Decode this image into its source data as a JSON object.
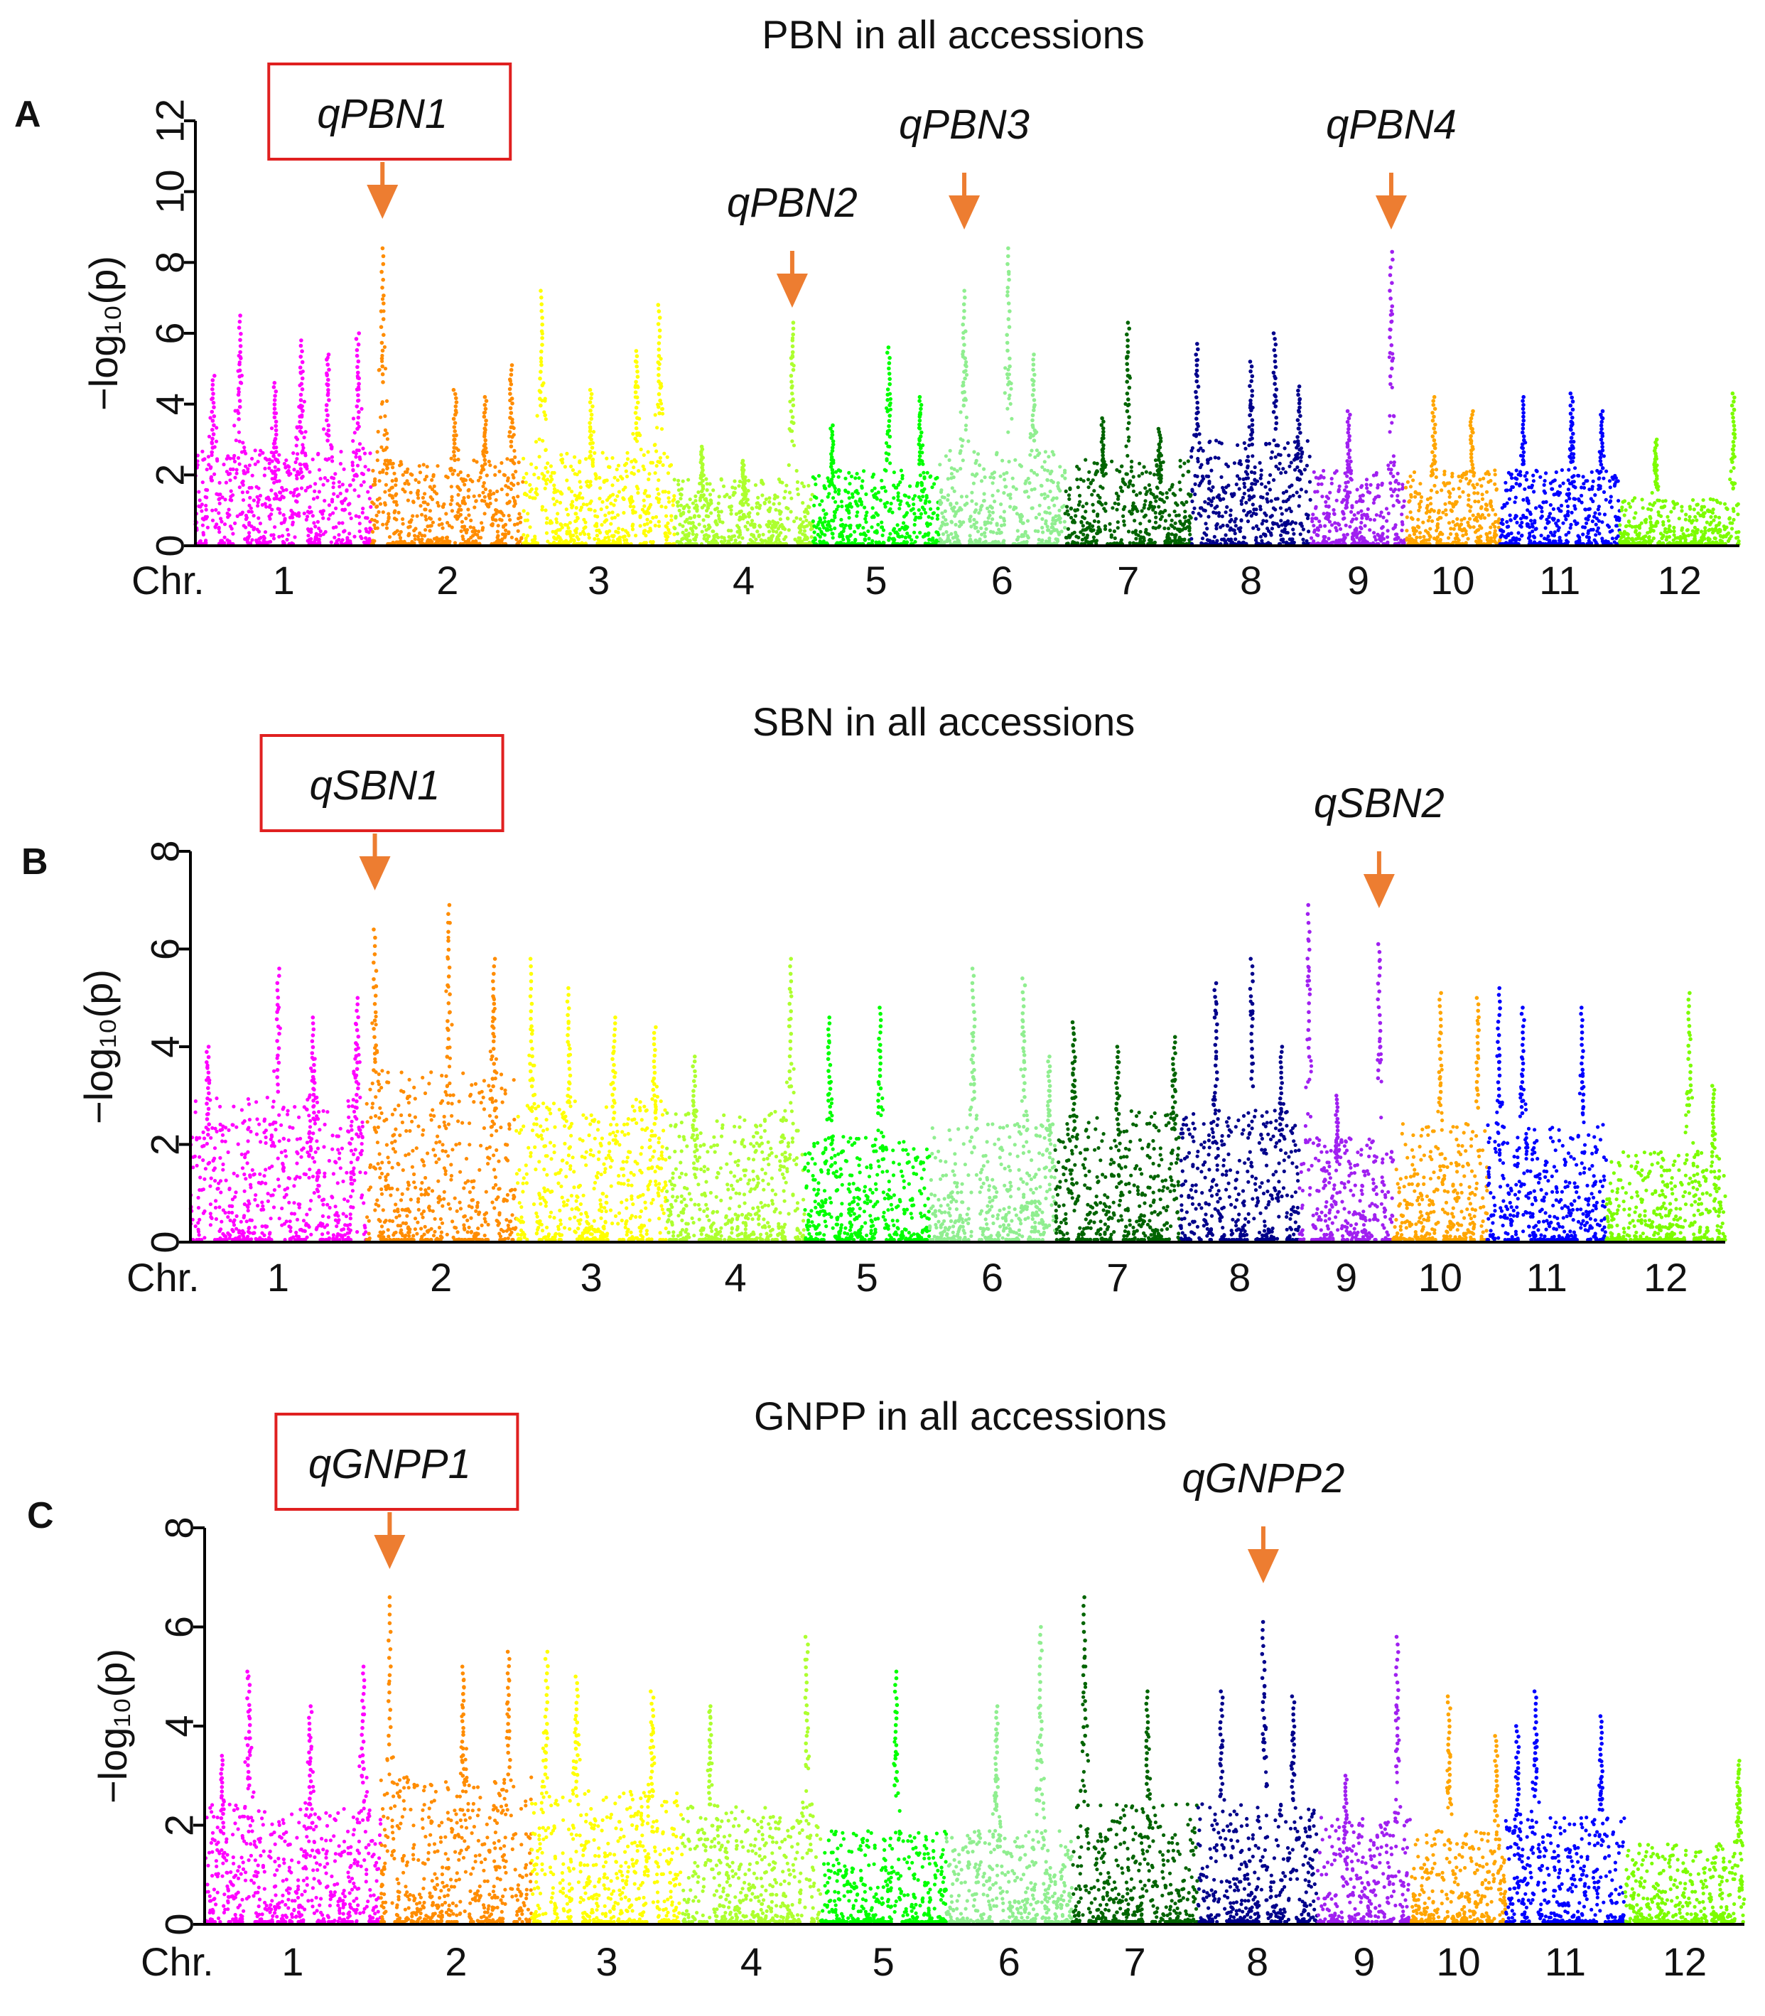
{
  "figure": {
    "ylabel": "−log₁₀(p)",
    "xlabel_prefix": "Chr.",
    "arrow_color": "#ED7D31",
    "box_color": "#E02020"
  },
  "chart_data": [
    {
      "type": "scatter",
      "panel": "A",
      "title": "PBN in all accessions",
      "xlabel": "Chr.",
      "ylabel": "−log₁₀(p)",
      "ylim": [
        0,
        12
      ],
      "yticks": [
        0,
        2,
        4,
        6,
        8,
        10,
        12
      ],
      "categories": [
        "1",
        "2",
        "3",
        "4",
        "5",
        "6",
        "7",
        "8",
        "9",
        "10",
        "11",
        "12"
      ],
      "chromosome_colors": [
        "#FF00FF",
        "#FF8C00",
        "#FFFF00",
        "#ADFF2F",
        "#00FF00",
        "#90EE90",
        "#006400",
        "#00008B",
        "#A020F0",
        "#FFA500",
        "#0000FF",
        "#7CFC00"
      ],
      "chromosome_widths": [
        1.4,
        1.2,
        1.2,
        1.1,
        1.0,
        1.0,
        1.0,
        0.95,
        0.75,
        0.75,
        0.95,
        0.95
      ],
      "series": [
        {
          "name": "1",
          "peaks": [
            {
              "x": 0.1,
              "y": 4.8
            },
            {
              "x": 0.25,
              "y": 6.5
            },
            {
              "x": 0.45,
              "y": 4.6
            },
            {
              "x": 0.6,
              "y": 5.8
            },
            {
              "x": 0.75,
              "y": 5.4
            },
            {
              "x": 0.92,
              "y": 6.0
            }
          ],
          "base": 2.0
        },
        {
          "name": "2",
          "peaks": [
            {
              "x": 0.07,
              "y": 8.4
            },
            {
              "x": 0.55,
              "y": 4.4
            },
            {
              "x": 0.75,
              "y": 4.2
            },
            {
              "x": 0.92,
              "y": 5.1
            }
          ],
          "base": 1.8
        },
        {
          "name": "3",
          "peaks": [
            {
              "x": 0.12,
              "y": 7.2
            },
            {
              "x": 0.45,
              "y": 4.4
            },
            {
              "x": 0.75,
              "y": 5.5
            },
            {
              "x": 0.9,
              "y": 6.8
            }
          ],
          "base": 2.0
        },
        {
          "name": "4",
          "peaks": [
            {
              "x": 0.2,
              "y": 2.8
            },
            {
              "x": 0.5,
              "y": 2.4
            },
            {
              "x": 0.85,
              "y": 6.3
            }
          ],
          "base": 1.4
        },
        {
          "name": "5",
          "peaks": [
            {
              "x": 0.15,
              "y": 3.4
            },
            {
              "x": 0.6,
              "y": 5.6
            },
            {
              "x": 0.85,
              "y": 4.2
            }
          ],
          "base": 1.6
        },
        {
          "name": "6",
          "peaks": [
            {
              "x": 0.2,
              "y": 7.2
            },
            {
              "x": 0.55,
              "y": 8.4
            },
            {
              "x": 0.75,
              "y": 5.4
            }
          ],
          "base": 2.0
        },
        {
          "name": "7",
          "peaks": [
            {
              "x": 0.3,
              "y": 3.6
            },
            {
              "x": 0.5,
              "y": 6.3
            },
            {
              "x": 0.75,
              "y": 3.3
            }
          ],
          "base": 1.8
        },
        {
          "name": "8",
          "peaks": [
            {
              "x": 0.05,
              "y": 5.7
            },
            {
              "x": 0.5,
              "y": 5.2
            },
            {
              "x": 0.7,
              "y": 6.0
            },
            {
              "x": 0.9,
              "y": 4.5
            }
          ],
          "base": 2.2
        },
        {
          "name": "9",
          "peaks": [
            {
              "x": 0.4,
              "y": 3.8
            },
            {
              "x": 0.85,
              "y": 8.3
            }
          ],
          "base": 1.6
        },
        {
          "name": "10",
          "peaks": [
            {
              "x": 0.3,
              "y": 4.2
            },
            {
              "x": 0.7,
              "y": 3.8
            }
          ],
          "base": 1.6
        },
        {
          "name": "11",
          "peaks": [
            {
              "x": 0.2,
              "y": 4.2
            },
            {
              "x": 0.6,
              "y": 4.3
            },
            {
              "x": 0.85,
              "y": 3.8
            }
          ],
          "base": 1.6
        },
        {
          "name": "12",
          "peaks": [
            {
              "x": 0.3,
              "y": 3.0
            },
            {
              "x": 0.95,
              "y": 4.3
            }
          ],
          "base": 1.0
        }
      ],
      "annotations": [
        {
          "label": "qPBN1",
          "boxed": true,
          "chr": 2,
          "pos": 0.07
        },
        {
          "label": "qPBN2",
          "boxed": false,
          "chr": 4,
          "pos": 0.85
        },
        {
          "label": "qPBN3",
          "boxed": false,
          "chr": 6,
          "pos": 0.2
        },
        {
          "label": "qPBN4",
          "boxed": false,
          "chr": 9,
          "pos": 0.85
        }
      ]
    },
    {
      "type": "scatter",
      "panel": "B",
      "title": "SBN in all accessions",
      "xlabel": "Chr.",
      "ylabel": "−log₁₀(p)",
      "ylim": [
        0,
        8
      ],
      "yticks": [
        0,
        2,
        4,
        6,
        8
      ],
      "categories": [
        "1",
        "2",
        "3",
        "4",
        "5",
        "6",
        "7",
        "8",
        "9",
        "10",
        "11",
        "12"
      ],
      "chromosome_colors": [
        "#FF00FF",
        "#FF8C00",
        "#FFFF00",
        "#ADFF2F",
        "#00FF00",
        "#90EE90",
        "#006400",
        "#00008B",
        "#A020F0",
        "#FFA500",
        "#0000FF",
        "#7CFC00"
      ],
      "chromosome_widths": [
        1.4,
        1.2,
        1.2,
        1.1,
        1.0,
        1.0,
        1.0,
        0.95,
        0.75,
        0.75,
        0.95,
        0.95
      ],
      "series": [
        {
          "name": "1",
          "peaks": [
            {
              "x": 0.1,
              "y": 4.0
            },
            {
              "x": 0.5,
              "y": 5.6
            },
            {
              "x": 0.7,
              "y": 4.6
            },
            {
              "x": 0.95,
              "y": 5.0
            }
          ],
          "base": 2.2
        },
        {
          "name": "2",
          "peaks": [
            {
              "x": 0.06,
              "y": 6.4
            },
            {
              "x": 0.55,
              "y": 6.9
            },
            {
              "x": 0.85,
              "y": 5.8
            }
          ],
          "base": 2.6
        },
        {
          "name": "3",
          "peaks": [
            {
              "x": 0.1,
              "y": 5.8
            },
            {
              "x": 0.35,
              "y": 5.2
            },
            {
              "x": 0.65,
              "y": 4.6
            },
            {
              "x": 0.92,
              "y": 4.4
            }
          ],
          "base": 2.2
        },
        {
          "name": "4",
          "peaks": [
            {
              "x": 0.2,
              "y": 3.8
            },
            {
              "x": 0.9,
              "y": 5.8
            }
          ],
          "base": 2.0
        },
        {
          "name": "5",
          "peaks": [
            {
              "x": 0.2,
              "y": 4.6
            },
            {
              "x": 0.6,
              "y": 4.8
            }
          ],
          "base": 1.6
        },
        {
          "name": "6",
          "peaks": [
            {
              "x": 0.35,
              "y": 5.6
            },
            {
              "x": 0.75,
              "y": 5.4
            },
            {
              "x": 0.95,
              "y": 3.8
            }
          ],
          "base": 1.8
        },
        {
          "name": "7",
          "peaks": [
            {
              "x": 0.15,
              "y": 4.5
            },
            {
              "x": 0.5,
              "y": 4.0
            },
            {
              "x": 0.95,
              "y": 4.2
            }
          ],
          "base": 2.0
        },
        {
          "name": "8",
          "peaks": [
            {
              "x": 0.3,
              "y": 5.3
            },
            {
              "x": 0.6,
              "y": 5.8
            },
            {
              "x": 0.85,
              "y": 4.0
            }
          ],
          "base": 2.0
        },
        {
          "name": "9",
          "peaks": [
            {
              "x": 0.1,
              "y": 6.9
            },
            {
              "x": 0.4,
              "y": 3.0
            },
            {
              "x": 0.85,
              "y": 6.1
            }
          ],
          "base": 1.6
        },
        {
          "name": "10",
          "peaks": [
            {
              "x": 0.5,
              "y": 5.1
            },
            {
              "x": 0.9,
              "y": 5.0
            }
          ],
          "base": 1.8
        },
        {
          "name": "11",
          "peaks": [
            {
              "x": 0.1,
              "y": 5.2
            },
            {
              "x": 0.3,
              "y": 4.8
            },
            {
              "x": 0.8,
              "y": 4.8
            }
          ],
          "base": 1.8
        },
        {
          "name": "12",
          "peaks": [
            {
              "x": 0.7,
              "y": 5.1
            },
            {
              "x": 0.9,
              "y": 3.2
            }
          ],
          "base": 1.4
        }
      ],
      "annotations": [
        {
          "label": "qSBN1",
          "boxed": true,
          "chr": 2,
          "pos": 0.06
        },
        {
          "label": "qSBN2",
          "boxed": false,
          "chr": 9,
          "pos": 0.85
        }
      ]
    },
    {
      "type": "scatter",
      "panel": "C",
      "title": "GNPP in all accessions",
      "xlabel": "Chr.",
      "ylabel": "−log₁₀(p)",
      "ylim": [
        0,
        8
      ],
      "yticks": [
        0,
        2,
        4,
        6,
        8
      ],
      "categories": [
        "1",
        "2",
        "3",
        "4",
        "5",
        "6",
        "7",
        "8",
        "9",
        "10",
        "11",
        "12"
      ],
      "chromosome_colors": [
        "#FF00FF",
        "#FF8C00",
        "#FFFF00",
        "#ADFF2F",
        "#00FF00",
        "#90EE90",
        "#006400",
        "#00008B",
        "#A020F0",
        "#FFA500",
        "#0000FF",
        "#7CFC00"
      ],
      "chromosome_widths": [
        1.4,
        1.2,
        1.2,
        1.1,
        1.0,
        1.0,
        1.0,
        0.95,
        0.75,
        0.75,
        0.95,
        0.95
      ],
      "series": [
        {
          "name": "1",
          "peaks": [
            {
              "x": 0.1,
              "y": 3.4
            },
            {
              "x": 0.25,
              "y": 5.1
            },
            {
              "x": 0.6,
              "y": 4.4
            },
            {
              "x": 0.9,
              "y": 5.2
            }
          ],
          "base": 1.8
        },
        {
          "name": "2",
          "peaks": [
            {
              "x": 0.06,
              "y": 6.6
            },
            {
              "x": 0.55,
              "y": 5.2
            },
            {
              "x": 0.85,
              "y": 5.5
            }
          ],
          "base": 2.2
        },
        {
          "name": "3",
          "peaks": [
            {
              "x": 0.1,
              "y": 5.5
            },
            {
              "x": 0.3,
              "y": 5.0
            },
            {
              "x": 0.8,
              "y": 4.7
            }
          ],
          "base": 2.0
        },
        {
          "name": "4",
          "peaks": [
            {
              "x": 0.2,
              "y": 4.4
            },
            {
              "x": 0.9,
              "y": 5.8
            }
          ],
          "base": 1.8
        },
        {
          "name": "5",
          "peaks": [
            {
              "x": 0.6,
              "y": 5.1
            }
          ],
          "base": 1.4
        },
        {
          "name": "6",
          "peaks": [
            {
              "x": 0.4,
              "y": 4.4
            },
            {
              "x": 0.75,
              "y": 6.0
            }
          ],
          "base": 1.4
        },
        {
          "name": "7",
          "peaks": [
            {
              "x": 0.1,
              "y": 6.6
            },
            {
              "x": 0.6,
              "y": 4.7
            }
          ],
          "base": 1.8
        },
        {
          "name": "8",
          "peaks": [
            {
              "x": 0.2,
              "y": 4.7
            },
            {
              "x": 0.55,
              "y": 6.1
            },
            {
              "x": 0.8,
              "y": 4.6
            }
          ],
          "base": 1.8
        },
        {
          "name": "9",
          "peaks": [
            {
              "x": 0.3,
              "y": 3.0
            },
            {
              "x": 0.85,
              "y": 5.8
            }
          ],
          "base": 1.6
        },
        {
          "name": "10",
          "peaks": [
            {
              "x": 0.4,
              "y": 4.6
            },
            {
              "x": 0.9,
              "y": 3.8
            }
          ],
          "base": 1.4
        },
        {
          "name": "11",
          "peaks": [
            {
              "x": 0.1,
              "y": 4.0
            },
            {
              "x": 0.25,
              "y": 4.7
            },
            {
              "x": 0.8,
              "y": 4.2
            }
          ],
          "base": 1.6
        },
        {
          "name": "12",
          "peaks": [
            {
              "x": 0.95,
              "y": 3.3
            }
          ],
          "base": 1.2
        }
      ],
      "annotations": [
        {
          "label": "qGNPP1",
          "boxed": true,
          "chr": 2,
          "pos": 0.06
        },
        {
          "label": "qGNPP2",
          "boxed": false,
          "chr": 8,
          "pos": 0.55
        }
      ]
    }
  ]
}
